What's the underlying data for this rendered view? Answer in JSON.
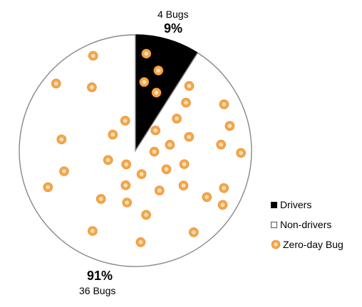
{
  "chart_data": {
    "type": "pie",
    "slices": [
      {
        "label": "Drivers",
        "value": 9,
        "percent_label": "9%",
        "count_label": "4 Bugs",
        "color": "#000000"
      },
      {
        "label": "Non-drivers",
        "value": 91,
        "percent_label": "91%",
        "count_label": "36 Bugs",
        "color": "#ffffff"
      }
    ],
    "legend": {
      "placement": "bottom-right",
      "entries": [
        {
          "label": "Drivers",
          "symbol": "black-square"
        },
        {
          "label": "Non-drivers",
          "symbol": "white-square"
        },
        {
          "label": "Zero-day Bug",
          "symbol": "bug-marker-icon"
        }
      ]
    },
    "markers": {
      "name": "Zero-day Bug",
      "drivers_count": 4,
      "non_drivers_count": 36
    },
    "colors": {
      "outline": "#888888",
      "marker_fill": "#f4a64a",
      "marker_inner": "#fbe0b8"
    }
  }
}
